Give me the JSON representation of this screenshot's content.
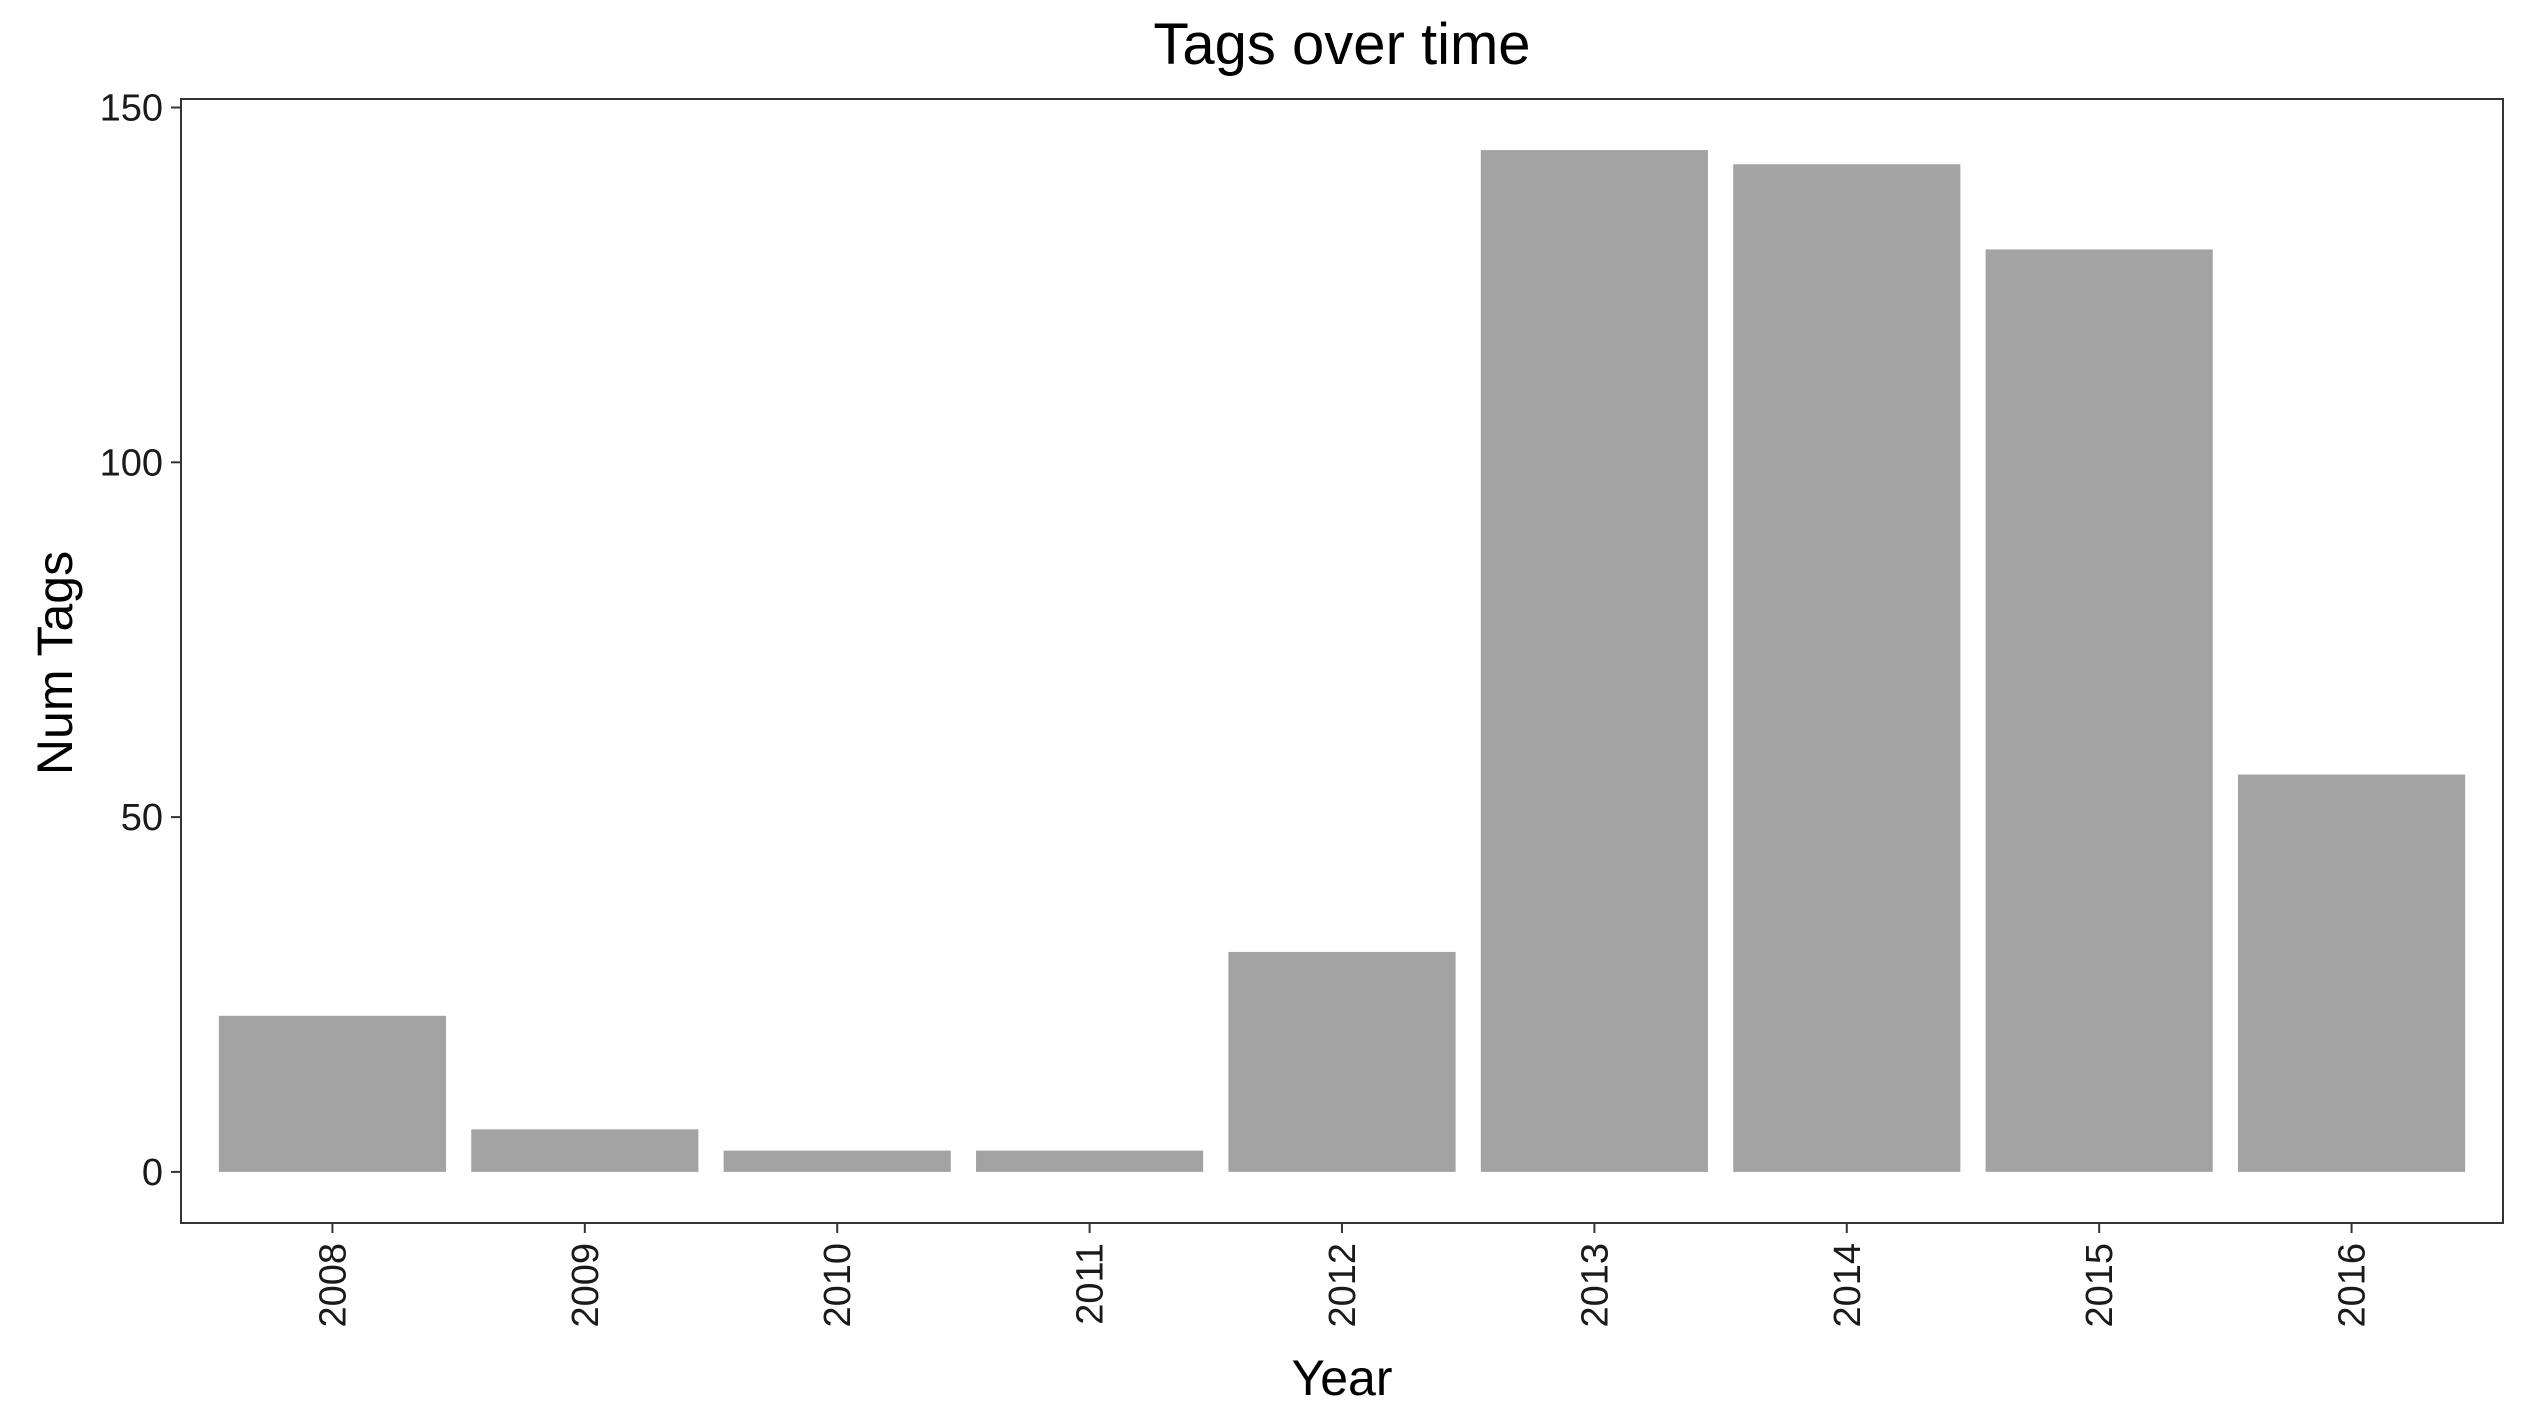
{
  "chart_data": {
    "type": "bar",
    "title": "Tags over time",
    "xlabel": "Year",
    "ylabel": "Num Tags",
    "categories": [
      "2008",
      "2009",
      "2010",
      "2011",
      "2012",
      "2013",
      "2014",
      "2015",
      "2016"
    ],
    "values": [
      22,
      6,
      3,
      3,
      31,
      144,
      142,
      130,
      56
    ],
    "yticks": [
      0,
      50,
      100,
      150
    ],
    "ytick_labels": [
      "0",
      "50",
      "100",
      "150"
    ],
    "ylim": [
      -7.2,
      151.2
    ],
    "grid": false,
    "legend": "none",
    "x_tick_label_rotation": "vertical",
    "bar_color": "#a3a3a3",
    "axis_color": "#333333",
    "background": "#ffffff"
  }
}
